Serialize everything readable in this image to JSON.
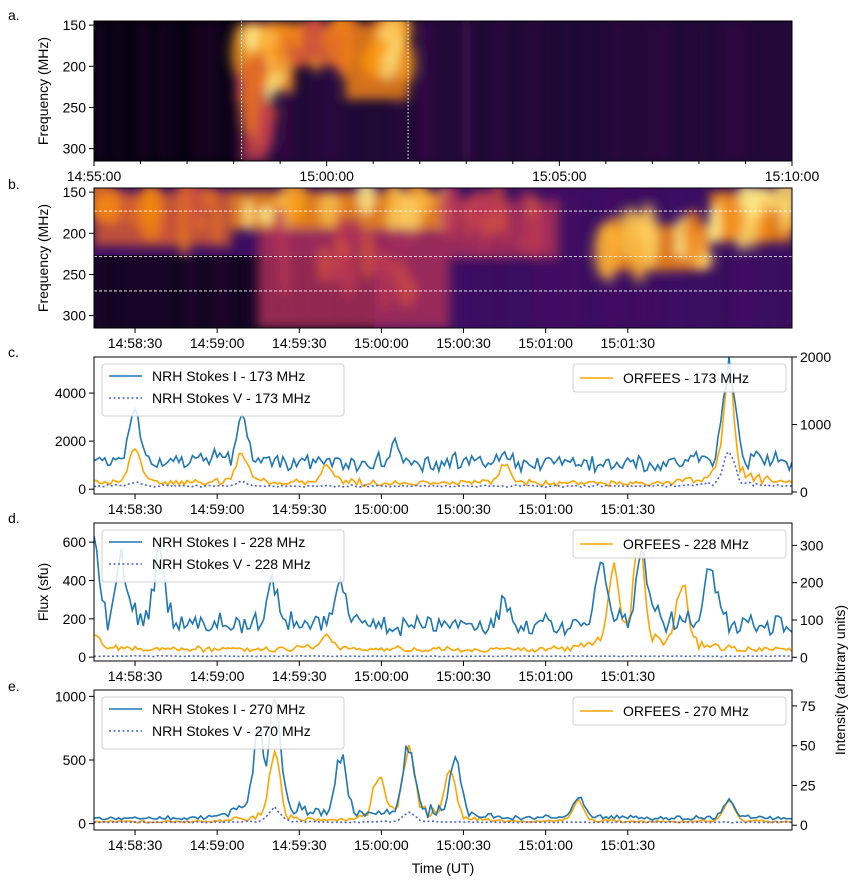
{
  "chart_data": [
    {
      "panel_label": "a.",
      "type": "heatmap",
      "ylabel": "Frequency (MHz)",
      "yticks": [
        "150",
        "200",
        "250",
        "300"
      ],
      "ylim": [
        315,
        145
      ],
      "xticks": [
        "14:55:00",
        "15:00:00",
        "15:05:00",
        "15:10:00"
      ],
      "xrange_minutes": [
        0,
        15
      ],
      "markers_minutes": [
        3.17,
        6.75
      ],
      "burst_regions": [
        {
          "t0": 3.2,
          "t1": 4.3,
          "f0": 148,
          "f1": 230,
          "level": 1.0
        },
        {
          "t0": 3.2,
          "t1": 3.7,
          "f0": 200,
          "f1": 315,
          "level": 0.7
        },
        {
          "t0": 4.3,
          "t1": 5.4,
          "f0": 148,
          "f1": 200,
          "level": 0.8
        },
        {
          "t0": 5.4,
          "t1": 6.75,
          "f0": 148,
          "f1": 240,
          "level": 0.95
        }
      ]
    },
    {
      "panel_label": "b.",
      "type": "heatmap",
      "ylabel": "Frequency (MHz)",
      "yticks": [
        "150",
        "200",
        "250",
        "300"
      ],
      "ylim": [
        315,
        145
      ],
      "xticks": [
        "14:58:30",
        "14:59:00",
        "14:59:30",
        "15:00:00",
        "15:00:30",
        "15:01:00",
        "15:01:30"
      ],
      "xrange_seconds": [
        0,
        255
      ],
      "hlines_mhz": [
        173,
        228,
        270
      ],
      "burst_regions": [
        {
          "t0": 0,
          "t1": 50,
          "f0": 150,
          "f1": 215,
          "level": 0.8
        },
        {
          "t0": 50,
          "t1": 130,
          "f0": 150,
          "f1": 195,
          "level": 1.0
        },
        {
          "t0": 60,
          "t1": 130,
          "f0": 195,
          "f1": 315,
          "level": 0.6
        },
        {
          "t0": 130,
          "t1": 170,
          "f0": 160,
          "f1": 230,
          "level": 0.6
        },
        {
          "t0": 185,
          "t1": 225,
          "f0": 190,
          "f1": 245,
          "level": 1.0
        },
        {
          "t0": 225,
          "t1": 255,
          "f0": 150,
          "f1": 210,
          "level": 1.0
        }
      ]
    },
    {
      "panel_label": "c.",
      "type": "line",
      "xticks": [
        "14:58:30",
        "14:59:00",
        "14:59:30",
        "15:00:00",
        "15:00:30",
        "15:01:00",
        "15:01:30"
      ],
      "xrange_seconds": [
        0,
        255
      ],
      "ylim": [
        -200,
        5500
      ],
      "yticks": [
        "0",
        "2000",
        "4000"
      ],
      "y2lim": [
        -30,
        2000
      ],
      "y2ticks": [
        "0",
        "1000",
        "2000"
      ],
      "ylabel": "",
      "y2label": "",
      "legend_left": [
        "NRH Stokes I - 173 MHz",
        "NRH Stokes V - 173 MHz"
      ],
      "legend_right": [
        "ORFEES - 173 MHz"
      ],
      "series": [
        {
          "name": "NRH Stokes I - 173 MHz",
          "axis": "left",
          "baseline": 1000,
          "peaks": [
            [
              15,
              3200
            ],
            [
              54,
              3100
            ],
            [
              110,
              1800
            ],
            [
              150,
              1600
            ],
            [
              195,
              1000
            ],
            [
              232,
              5200
            ]
          ]
        },
        {
          "name": "NRH Stokes V - 173 MHz",
          "axis": "left",
          "baseline": 120,
          "peaks": [
            [
              15,
              300
            ],
            [
              54,
              300
            ],
            [
              232,
              1500
            ]
          ]
        },
        {
          "name": "ORFEES - 173 MHz",
          "axis": "right",
          "baseline": 120,
          "peaks": [
            [
              15,
              650
            ],
            [
              54,
              600
            ],
            [
              85,
              400
            ],
            [
              150,
              400
            ],
            [
              232,
              1700
            ]
          ]
        }
      ]
    },
    {
      "panel_label": "d.",
      "type": "line",
      "xticks": [
        "14:58:30",
        "14:59:00",
        "14:59:30",
        "15:00:00",
        "15:00:30",
        "15:01:00",
        "15:01:30"
      ],
      "xrange_seconds": [
        0,
        255
      ],
      "ylim": [
        -20,
        700
      ],
      "yticks": [
        "0",
        "200",
        "400",
        "600"
      ],
      "y2lim": [
        -10,
        360
      ],
      "y2ticks": [
        "0",
        "100",
        "200",
        "300"
      ],
      "ylabel": "Flux (sfu)",
      "y2label": "Intensity (arbitrary units)",
      "legend_left": [
        "NRH Stokes I - 228 MHz",
        "NRH Stokes V - 228 MHz"
      ],
      "legend_right": [
        "ORFEES - 228 MHz"
      ],
      "series": [
        {
          "name": "NRH Stokes I - 228 MHz",
          "axis": "left",
          "baseline": 150,
          "peaks": [
            [
              0,
              560
            ],
            [
              10,
              500
            ],
            [
              24,
              540
            ],
            [
              65,
              400
            ],
            [
              90,
              420
            ],
            [
              150,
              280
            ],
            [
              185,
              480
            ],
            [
              200,
              560
            ],
            [
              225,
              500
            ]
          ]
        },
        {
          "name": "NRH Stokes V - 228 MHz",
          "axis": "left",
          "baseline": 5,
          "peaks": []
        },
        {
          "name": "ORFEES - 228 MHz",
          "axis": "right",
          "baseline": 20,
          "peaks": [
            [
              0,
              70
            ],
            [
              85,
              60
            ],
            [
              190,
              220
            ],
            [
              199,
              330
            ],
            [
              215,
              200
            ]
          ]
        }
      ]
    },
    {
      "panel_label": "e.",
      "type": "line",
      "xticks": [
        "14:58:30",
        "14:59:00",
        "14:59:30",
        "15:00:00",
        "15:00:30",
        "15:01:00",
        "15:01:30"
      ],
      "xrange_seconds": [
        0,
        255
      ],
      "xlabel": "Time (UT)",
      "ylim": [
        -50,
        1050
      ],
      "yticks": [
        "0",
        "500",
        "1000"
      ],
      "y2lim": [
        -3,
        85
      ],
      "y2ticks": [
        "0",
        "25",
        "50",
        "75"
      ],
      "ylabel": "",
      "y2label": "",
      "legend_left": [
        "NRH Stokes I - 270 MHz",
        "NRH Stokes V - 270 MHz"
      ],
      "legend_right": [
        "ORFEES - 270 MHz"
      ],
      "series": [
        {
          "name": "NRH Stokes I - 270 MHz",
          "axis": "left",
          "baseline": 40,
          "peaks": [
            [
              60,
              700
            ],
            [
              66,
              1000
            ],
            [
              90,
              540
            ],
            [
              115,
              620
            ],
            [
              132,
              500
            ],
            [
              177,
              200
            ],
            [
              232,
              180
            ]
          ]
        },
        {
          "name": "NRH Stokes V - 270 MHz",
          "axis": "left",
          "baseline": 10,
          "peaks": [
            [
              66,
              120
            ],
            [
              115,
              90
            ]
          ]
        },
        {
          "name": "ORFEES - 270 MHz",
          "axis": "right",
          "baseline": 2,
          "peaks": [
            [
              66,
              45
            ],
            [
              104,
              30
            ],
            [
              115,
              50
            ],
            [
              130,
              35
            ],
            [
              177,
              15
            ],
            [
              232,
              15
            ]
          ]
        }
      ]
    }
  ],
  "colors": {
    "nrh_i": "#1f77b4",
    "nrh_v": "#4c61d6",
    "orfees": "#ffa500"
  }
}
